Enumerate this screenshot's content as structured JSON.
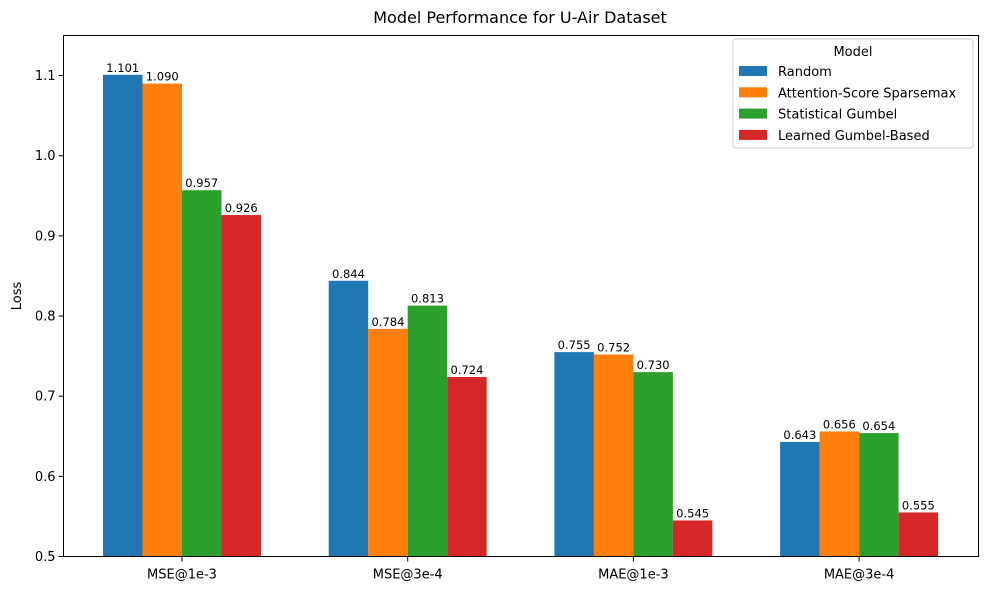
{
  "chart_data": {
    "type": "bar",
    "title": "Model Performance for U-Air Dataset",
    "ylabel": "Loss",
    "xlabel": "",
    "ylim": [
      0.5,
      1.15
    ],
    "yticks": [
      "0.5",
      "0.6",
      "0.7",
      "0.8",
      "0.9",
      "1.0",
      "1.1"
    ],
    "categories": [
      "MSE@1e-3",
      "MSE@3e-4",
      "MAE@1e-3",
      "MAE@3e-4"
    ],
    "legend_title": "Model",
    "legend_position": "top-right",
    "grid": false,
    "series": [
      {
        "name": "Random",
        "color": "#1f77b4",
        "values": [
          1.101,
          0.844,
          0.755,
          0.643
        ],
        "labels": [
          "1.101",
          "0.844",
          "0.755",
          "0.643"
        ]
      },
      {
        "name": "Attention-Score Sparsemax",
        "color": "#ff7f0e",
        "values": [
          1.09,
          0.784,
          0.752,
          0.656
        ],
        "labels": [
          "1.090",
          "0.784",
          "0.752",
          "0.656"
        ]
      },
      {
        "name": "Statistical Gumbel",
        "color": "#2ca02c",
        "values": [
          0.957,
          0.813,
          0.73,
          0.654
        ],
        "labels": [
          "0.957",
          "0.813",
          "0.730",
          "0.654"
        ]
      },
      {
        "name": "Learned Gumbel-Based",
        "color": "#d62728",
        "values": [
          0.926,
          0.724,
          0.545,
          0.555
        ],
        "labels": [
          "0.926",
          "0.724",
          "0.545",
          "0.555"
        ]
      }
    ]
  }
}
